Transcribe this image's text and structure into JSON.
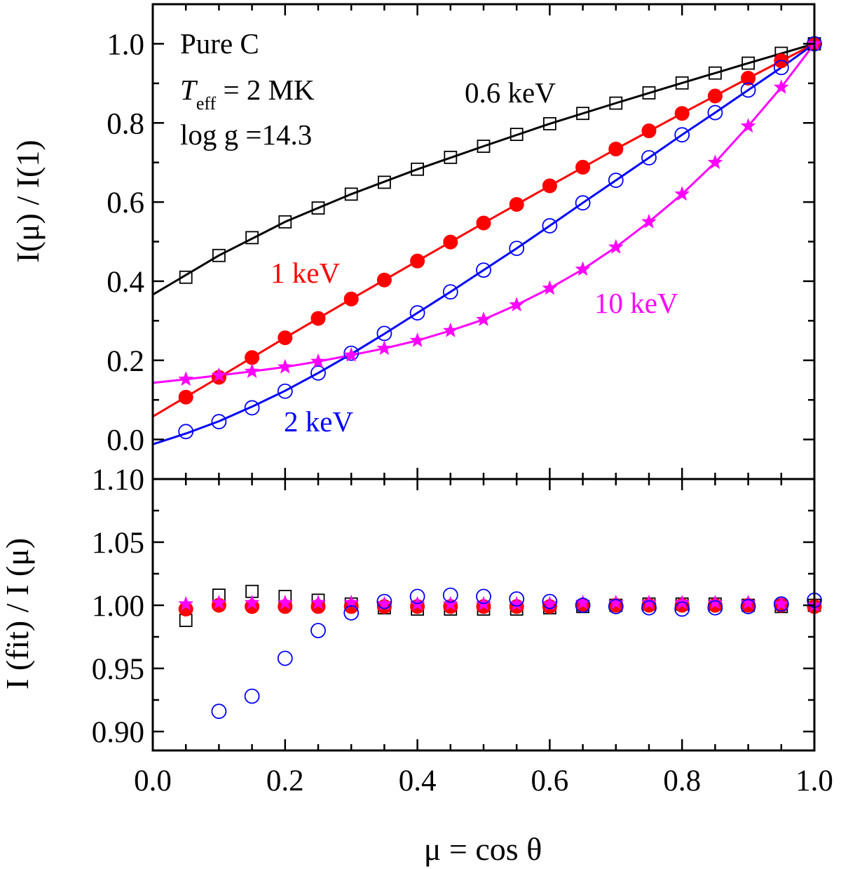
{
  "chart_data": [
    {
      "type": "scatter",
      "panel": "top",
      "ylabel": "I(μ) / I(1)",
      "xlim": [
        0.0,
        1.0
      ],
      "ylim": [
        -0.1,
        1.1
      ],
      "yticks": [
        "0.0",
        "0.2",
        "0.4",
        "0.6",
        "0.8",
        "1.0"
      ],
      "annotations": {
        "model": "Pure C",
        "teff_main": "T",
        "teff_sub": "eff",
        "teff_rest": " = 2 MK",
        "logg": "log g =14.3"
      },
      "x": [
        0.05,
        0.1,
        0.15,
        0.2,
        0.25,
        0.3,
        0.35,
        0.4,
        0.45,
        0.5,
        0.55,
        0.6,
        0.65,
        0.7,
        0.75,
        0.8,
        0.85,
        0.9,
        0.95,
        1.0
      ],
      "series": [
        {
          "name": "0.6 keV",
          "color": "#000000",
          "marker": "open-square",
          "values": [
            0.41,
            0.465,
            0.51,
            0.55,
            0.585,
            0.62,
            0.65,
            0.683,
            0.713,
            0.741,
            0.771,
            0.798,
            0.824,
            0.85,
            0.876,
            0.901,
            0.926,
            0.951,
            0.976,
            1.0
          ]
        },
        {
          "name": "1 keV",
          "color": "#ff0000",
          "marker": "filled-circle",
          "values": [
            0.107,
            0.157,
            0.207,
            0.257,
            0.306,
            0.355,
            0.403,
            0.451,
            0.499,
            0.547,
            0.594,
            0.641,
            0.688,
            0.734,
            0.78,
            0.824,
            0.868,
            0.913,
            0.957,
            1.0
          ]
        },
        {
          "name": "2 keV",
          "color": "#0000ff",
          "marker": "open-circle",
          "values": [
            0.02,
            0.045,
            0.08,
            0.122,
            0.168,
            0.218,
            0.268,
            0.32,
            0.373,
            0.428,
            0.483,
            0.54,
            0.598,
            0.655,
            0.712,
            0.77,
            0.826,
            0.883,
            0.94,
            1.0
          ]
        },
        {
          "name": "10 keV",
          "color": "#ff00ff",
          "marker": "star",
          "values": [
            0.152,
            0.162,
            0.172,
            0.183,
            0.197,
            0.213,
            0.23,
            0.25,
            0.275,
            0.303,
            0.34,
            0.382,
            0.43,
            0.486,
            0.55,
            0.62,
            0.7,
            0.792,
            0.89,
            1.0
          ]
        }
      ],
      "fit_curves": [
        {
          "color": "#000000",
          "x": [
            0.0,
            0.1,
            0.2,
            0.3,
            0.4,
            0.5,
            0.6,
            0.7,
            0.8,
            0.9,
            1.0
          ],
          "y": [
            0.366,
            0.465,
            0.55,
            0.62,
            0.683,
            0.741,
            0.798,
            0.85,
            0.901,
            0.951,
            1.0
          ]
        },
        {
          "color": "#ff0000",
          "x": [
            0.0,
            0.1,
            0.2,
            0.3,
            0.4,
            0.5,
            0.6,
            0.7,
            0.8,
            0.9,
            1.0
          ],
          "y": [
            0.058,
            0.157,
            0.257,
            0.355,
            0.451,
            0.547,
            0.641,
            0.734,
            0.824,
            0.913,
            1.0
          ]
        },
        {
          "color": "#0000ff",
          "x": [
            0.0,
            0.05,
            0.1,
            0.15,
            0.2,
            0.25,
            0.3,
            0.35,
            0.4,
            0.45,
            0.5,
            0.55,
            0.6,
            0.65,
            0.7,
            0.75,
            0.8,
            0.85,
            0.9,
            0.95,
            1.0
          ],
          "y": [
            -0.012,
            0.015,
            0.046,
            0.083,
            0.123,
            0.168,
            0.216,
            0.267,
            0.32,
            0.373,
            0.428,
            0.483,
            0.54,
            0.598,
            0.655,
            0.712,
            0.77,
            0.826,
            0.883,
            0.94,
            1.0
          ]
        },
        {
          "color": "#ff00ff",
          "x": [
            0.0,
            0.05,
            0.1,
            0.15,
            0.2,
            0.25,
            0.3,
            0.35,
            0.4,
            0.45,
            0.5,
            0.55,
            0.6,
            0.65,
            0.7,
            0.75,
            0.8,
            0.85,
            0.9,
            0.95,
            1.0
          ],
          "y": [
            0.143,
            0.152,
            0.162,
            0.172,
            0.183,
            0.197,
            0.213,
            0.23,
            0.25,
            0.275,
            0.303,
            0.34,
            0.382,
            0.43,
            0.486,
            0.55,
            0.62,
            0.7,
            0.792,
            0.89,
            1.0
          ]
        }
      ]
    },
    {
      "type": "scatter",
      "panel": "bottom",
      "ylabel": "I (fit) / I (μ)",
      "xlabel": "μ = cos θ",
      "xlim": [
        0.0,
        1.0
      ],
      "ylim": [
        0.885,
        1.1
      ],
      "xticks": [
        "0.0",
        "0.2",
        "0.4",
        "0.6",
        "0.8",
        "1.0"
      ],
      "yticks": [
        "0.90",
        "0.95",
        "1.00",
        "1.05",
        "1.10"
      ],
      "x": [
        0.05,
        0.1,
        0.15,
        0.2,
        0.25,
        0.3,
        0.35,
        0.4,
        0.45,
        0.5,
        0.55,
        0.6,
        0.65,
        0.7,
        0.75,
        0.8,
        0.85,
        0.9,
        0.95,
        1.0
      ],
      "series": [
        {
          "name": "0.6 keV",
          "color": "#000000",
          "marker": "open-square",
          "values": [
            0.988,
            1.008,
            1.011,
            1.007,
            1.004,
            1.001,
            0.998,
            0.997,
            0.997,
            0.997,
            0.997,
            0.998,
            0.999,
            1.0,
            1.001,
            1.001,
            1.001,
            1.0,
            0.999,
            1.0
          ]
        },
        {
          "name": "1 keV",
          "color": "#ff0000",
          "marker": "filled-circle",
          "values": [
            0.997,
            1.0,
            0.999,
            0.999,
            0.999,
            0.999,
            0.999,
            0.999,
            0.999,
            0.999,
            0.999,
            0.999,
            1.0,
            1.0,
            1.0,
            1.0,
            1.0,
            1.0,
            1.0,
            0.999
          ]
        },
        {
          "name": "10 keV",
          "color": "#ff00ff",
          "marker": "star",
          "values": [
            1.001,
            1.002,
            1.002,
            1.002,
            1.002,
            1.002,
            1.001,
            1.001,
            1.001,
            1.001,
            1.001,
            1.001,
            1.002,
            1.002,
            1.002,
            1.002,
            1.002,
            1.002,
            1.001,
            1.0
          ]
        },
        {
          "name": "2 keV",
          "color": "#0000ff",
          "marker": "open-circle",
          "values": [
            null,
            0.916,
            0.928,
            0.958,
            0.98,
            0.994,
            1.003,
            1.007,
            1.008,
            1.007,
            1.005,
            1.003,
            1.0,
            0.999,
            0.998,
            0.997,
            0.998,
            0.999,
            1.001,
            1.004
          ]
        }
      ]
    }
  ]
}
